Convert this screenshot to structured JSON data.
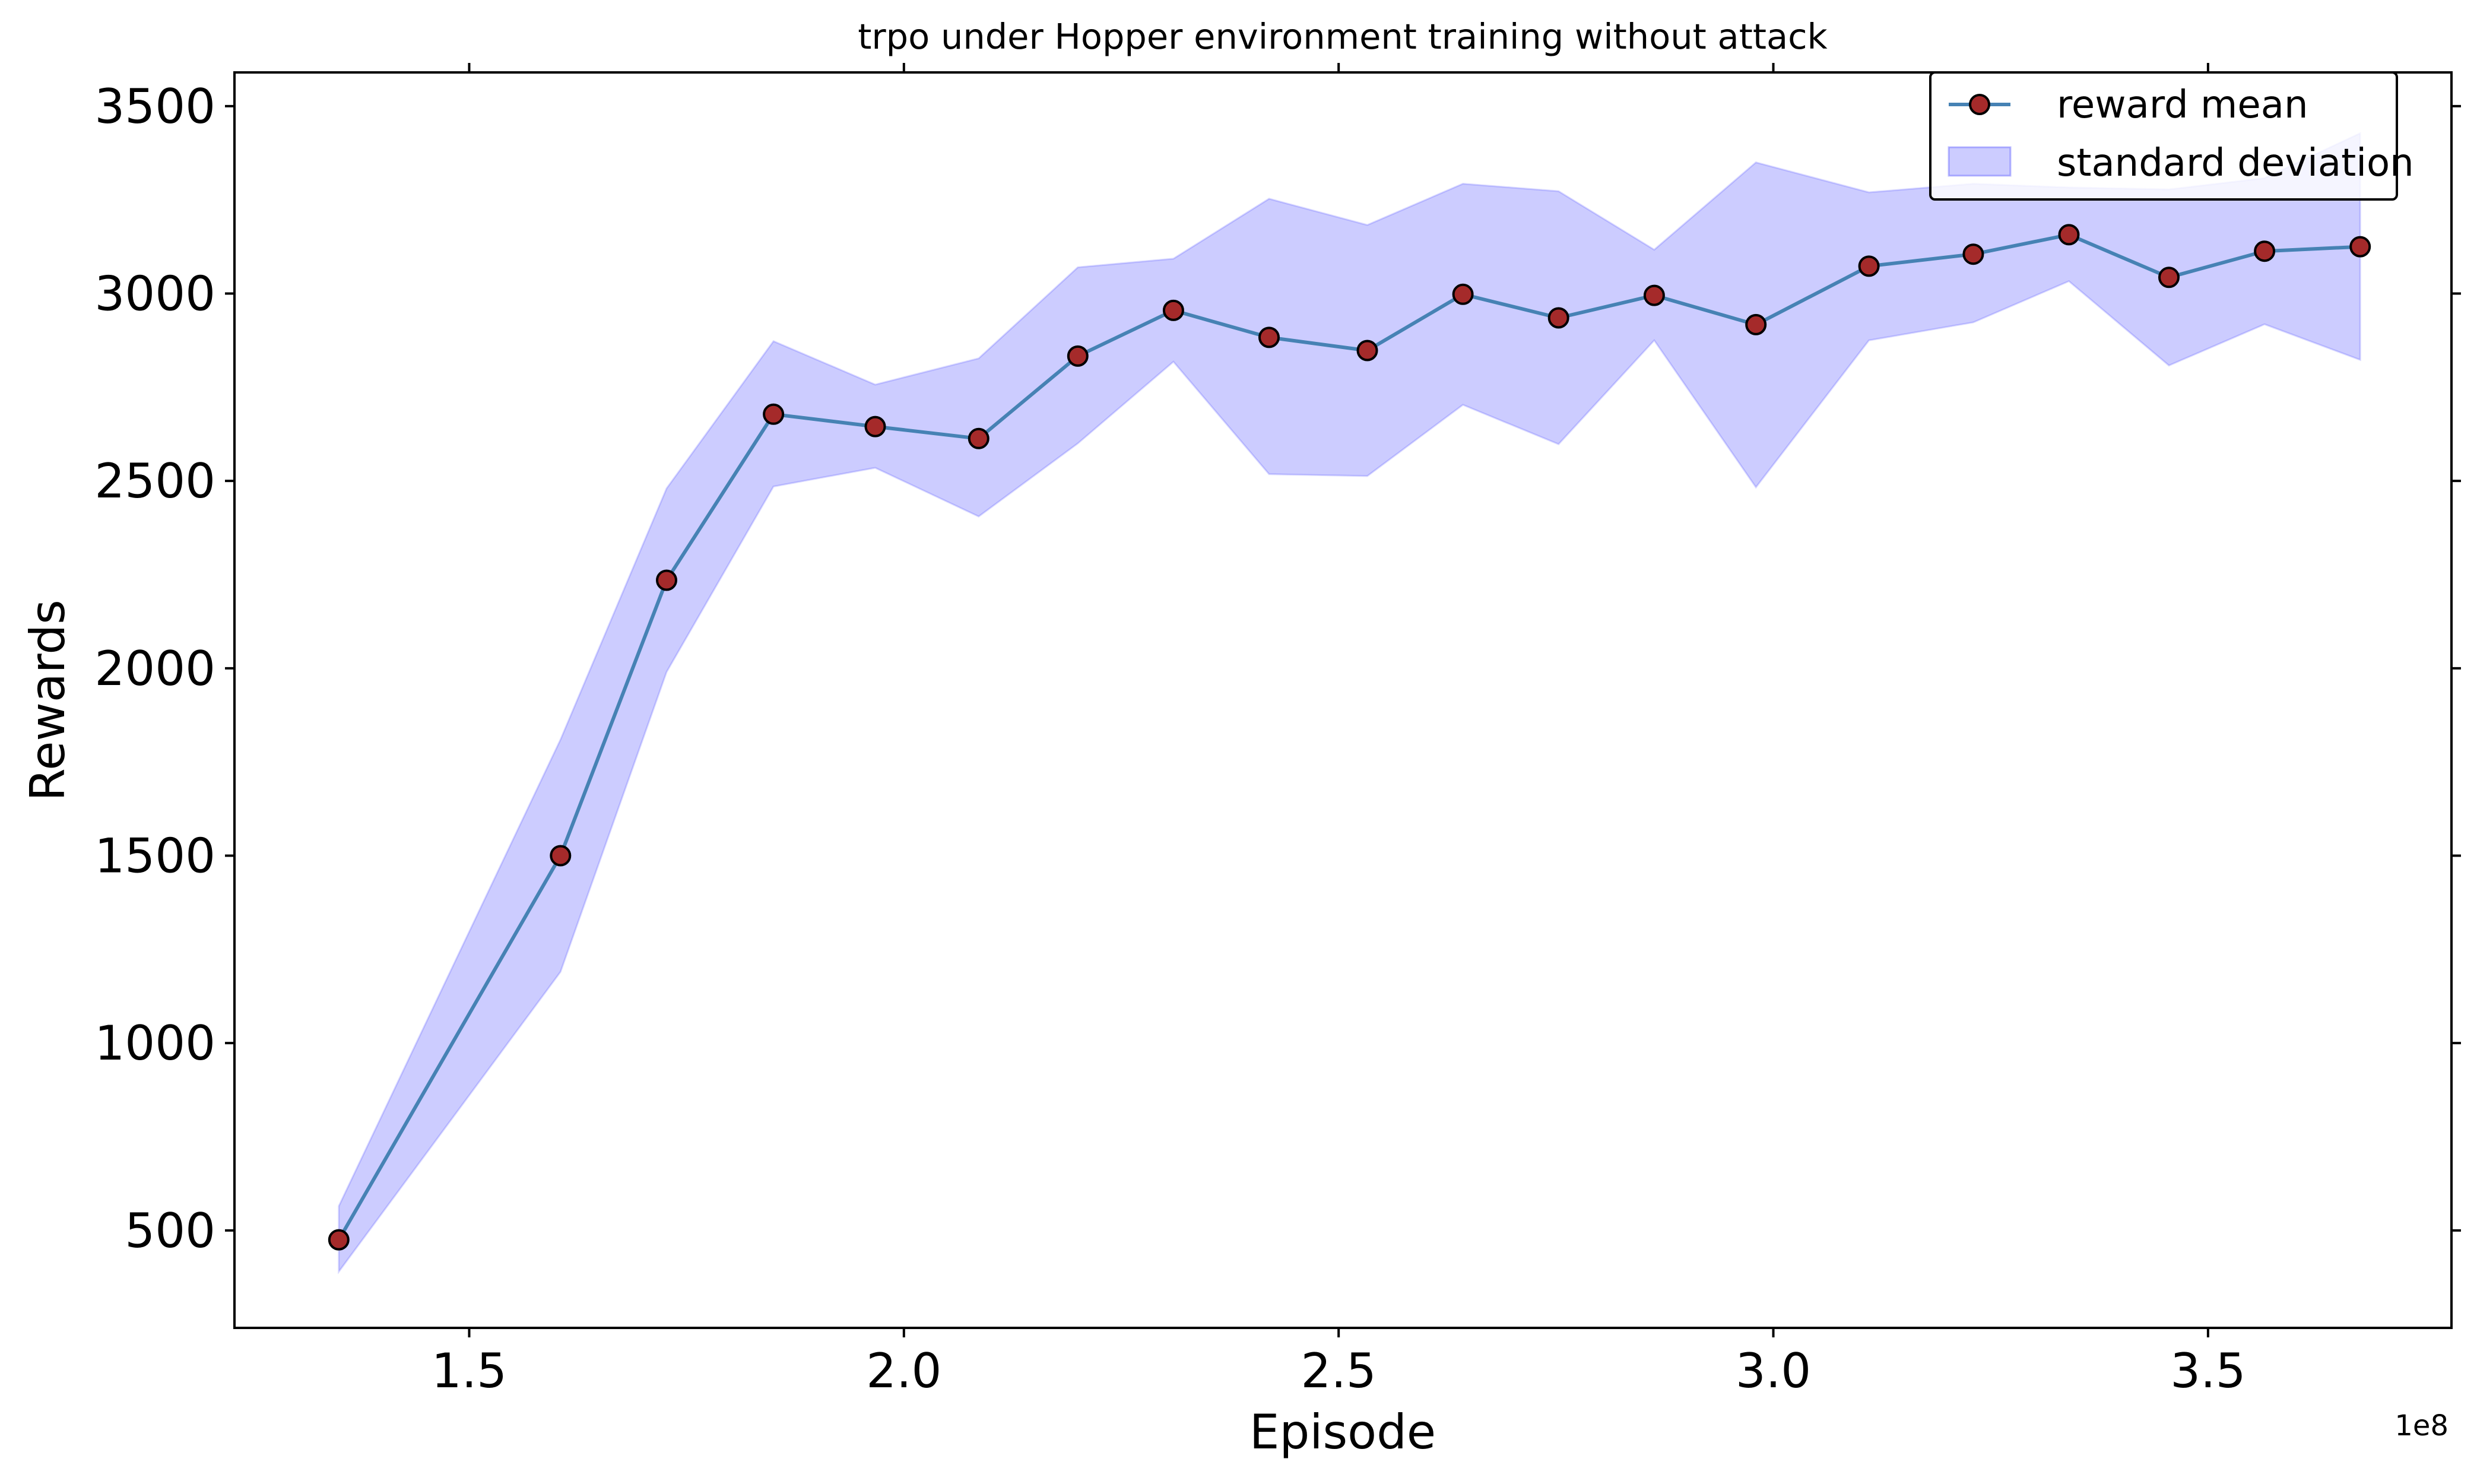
{
  "chart_data": {
    "type": "line",
    "title": "trpo under Hopper environment training without attack",
    "xlabel": "Episode",
    "ylabel": "Rewards",
    "x_offset_label": "1e8",
    "xlim": [
      1.23,
      3.78
    ],
    "ylim": [
      240,
      3590
    ],
    "x_ticks": [
      1.5,
      2.0,
      2.5,
      3.0,
      3.5
    ],
    "x_tick_labels": [
      "1.5",
      "2.0",
      "2.5",
      "3.0",
      "3.5"
    ],
    "y_ticks": [
      500,
      1000,
      1500,
      2000,
      2500,
      3000,
      3500
    ],
    "y_tick_labels": [
      "500",
      "1000",
      "1500",
      "2000",
      "2500",
      "3000",
      "3500"
    ],
    "grid": false,
    "legend_position": "top-right",
    "x": [
      1.35,
      1.605,
      1.727,
      1.85,
      1.967,
      2.086,
      2.2,
      2.31,
      2.42,
      2.533,
      2.643,
      2.753,
      2.863,
      2.98,
      3.11,
      3.23,
      3.34,
      3.455,
      3.565,
      3.675
    ],
    "series": [
      {
        "name": "reward mean",
        "values": [
          475,
          1500,
          2235,
          2678,
          2645,
          2613,
          2833,
          2955,
          2883,
          2848,
          2998,
          2935,
          2995,
          2917,
          3073,
          3105,
          3157,
          3043,
          3113,
          3125
        ],
        "color": "#4682b4",
        "marker_face": "#a52a2a",
        "marker_edge": "#000000"
      },
      {
        "name": "standard deviation",
        "type": "band",
        "lower": [
          390,
          1190,
          1990,
          2485,
          2535,
          2405,
          2600,
          2818,
          2518,
          2513,
          2703,
          2598,
          2875,
          2483,
          2875,
          2923,
          3033,
          2808,
          2918,
          2823
        ],
        "upper": [
          565,
          1810,
          2480,
          2873,
          2757,
          2827,
          3070,
          3093,
          3253,
          3183,
          3293,
          3273,
          3117,
          3350,
          3270,
          3293,
          3283,
          3278,
          3308,
          3428
        ],
        "color": "#0000ff",
        "opacity": 0.2
      }
    ]
  }
}
